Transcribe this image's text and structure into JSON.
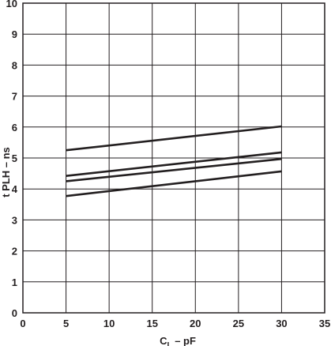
{
  "chart_data": {
    "type": "line",
    "xlabel_main": "C",
    "xlabel_sub": "L",
    "xlabel_rest": " – pF",
    "ylabel": "t PLH – ns",
    "xlim": [
      0,
      35
    ],
    "ylim": [
      0,
      10
    ],
    "x_ticks": [
      "0",
      "5",
      "10",
      "15",
      "20",
      "25",
      "30",
      "35"
    ],
    "y_ticks": [
      "0",
      "1",
      "2",
      "3",
      "4",
      "5",
      "6",
      "7",
      "8",
      "9",
      "10"
    ],
    "grid": true,
    "legend": "none",
    "series": [
      {
        "x": [
          5,
          30
        ],
        "y": [
          5.25,
          6.02
        ]
      },
      {
        "x": [
          5,
          30
        ],
        "y": [
          4.42,
          5.18
        ]
      },
      {
        "x": [
          5,
          30
        ],
        "y": [
          4.25,
          4.97
        ]
      },
      {
        "x": [
          5,
          30
        ],
        "y": [
          3.77,
          4.57
        ]
      }
    ]
  }
}
